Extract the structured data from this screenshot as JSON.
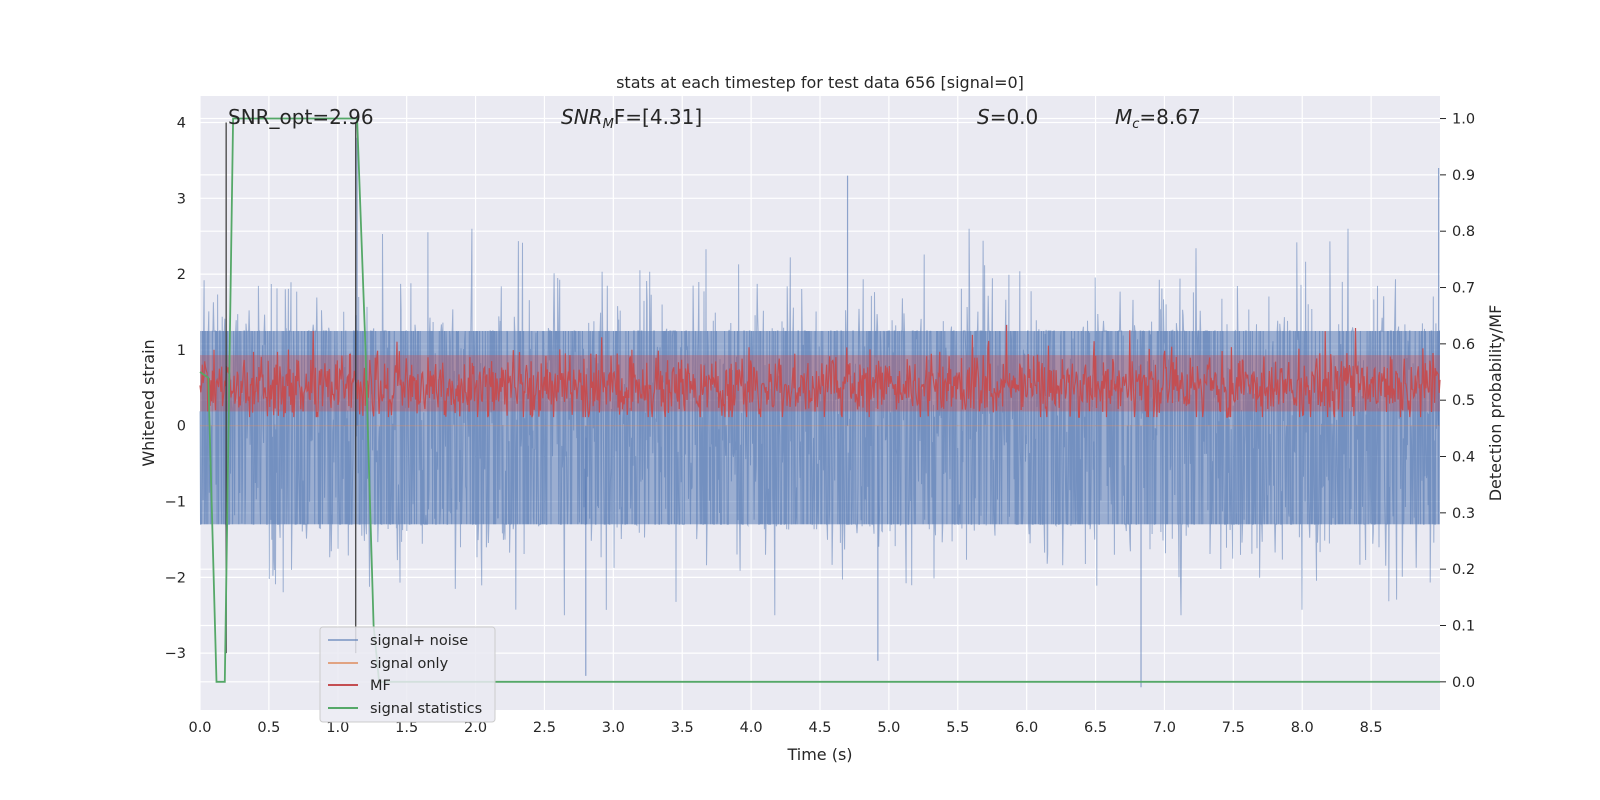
{
  "chart_data": {
    "type": "line",
    "title": "stats at each timestep for test data 656 [signal=0]",
    "xlabel": "Time (s)",
    "ylabel_left": "Whitened strain",
    "ylabel_right": "Detection probability/MF",
    "xlim": [
      0,
      9.0
    ],
    "ylim_left": [
      -3.75,
      4.35
    ],
    "ylim_right": [
      -0.05,
      1.04
    ],
    "x_ticks": [
      0.0,
      0.5,
      1.0,
      1.5,
      2.0,
      2.5,
      3.0,
      3.5,
      4.0,
      4.5,
      5.0,
      5.5,
      6.0,
      6.5,
      7.0,
      7.5,
      8.0,
      8.5
    ],
    "x_tick_labels": [
      "0.0",
      "0.5",
      "1.0",
      "1.5",
      "2.0",
      "2.5",
      "3.0",
      "3.5",
      "4.0",
      "4.5",
      "5.0",
      "5.5",
      "6.0",
      "6.5",
      "7.0",
      "7.5",
      "8.0",
      "8.5"
    ],
    "y_ticks_left": [
      -3,
      -2,
      -1,
      0,
      1,
      2,
      3,
      4
    ],
    "y_tick_labels_left": [
      "−3",
      "−2",
      "−1",
      "0",
      "1",
      "2",
      "3",
      "4"
    ],
    "y_ticks_right": [
      0.0,
      0.1,
      0.2,
      0.3,
      0.4,
      0.5,
      0.6,
      0.7,
      0.8,
      0.9,
      1.0
    ],
    "y_tick_labels_right": [
      "0.0",
      "0.1",
      "0.2",
      "0.3",
      "0.4",
      "0.5",
      "0.6",
      "0.7",
      "0.8",
      "0.9",
      "1.0"
    ],
    "grid": true,
    "legend_position": "bottom-left",
    "annotations": {
      "snr_opt": "SNR_opt=2.96",
      "snr_mf_sym": "SNR",
      "snr_mf_sub": "M",
      "snr_mf_rest": "F=[4.31]",
      "s_sym": "S",
      "s_rest": "=0.0",
      "mc_sym": "M",
      "mc_sub": "c",
      "mc_rest": "=8.67"
    },
    "vertical_markers": [
      0.19,
      1.13
    ],
    "vertical_marker_range": [
      -3.0,
      4.0
    ],
    "series": [
      {
        "name": "signal+ noise",
        "color": "#4c72b0",
        "style": "noise band",
        "axis": "left",
        "band_core": [
          -1.3,
          1.25
        ],
        "typical_peaks": [
          -2.5,
          2.6
        ],
        "extreme_range": [
          -3.45,
          3.8
        ]
      },
      {
        "name": "signal only",
        "color": "#dd8452",
        "axis": "left",
        "x": [
          0,
          9.0
        ],
        "y": [
          0,
          0
        ]
      },
      {
        "name": "MF",
        "color": "#c44e52",
        "style": "noise band",
        "axis": "right",
        "center": 0.525,
        "band": [
          0.48,
          0.58
        ],
        "peaks": [
          0.47,
          0.64
        ]
      },
      {
        "name": "signal statistics",
        "color": "#55a868",
        "axis": "right",
        "x": [
          0.0,
          0.06,
          0.12,
          0.18,
          0.24,
          0.6,
          1.08,
          1.14,
          1.2,
          1.26,
          1.3,
          3.0,
          9.0
        ],
        "y": [
          0.55,
          0.54,
          0.0,
          0.0,
          1.0,
          1.0,
          1.0,
          1.0,
          0.6,
          0.1,
          0.0,
          0.0,
          0.0
        ]
      }
    ]
  }
}
